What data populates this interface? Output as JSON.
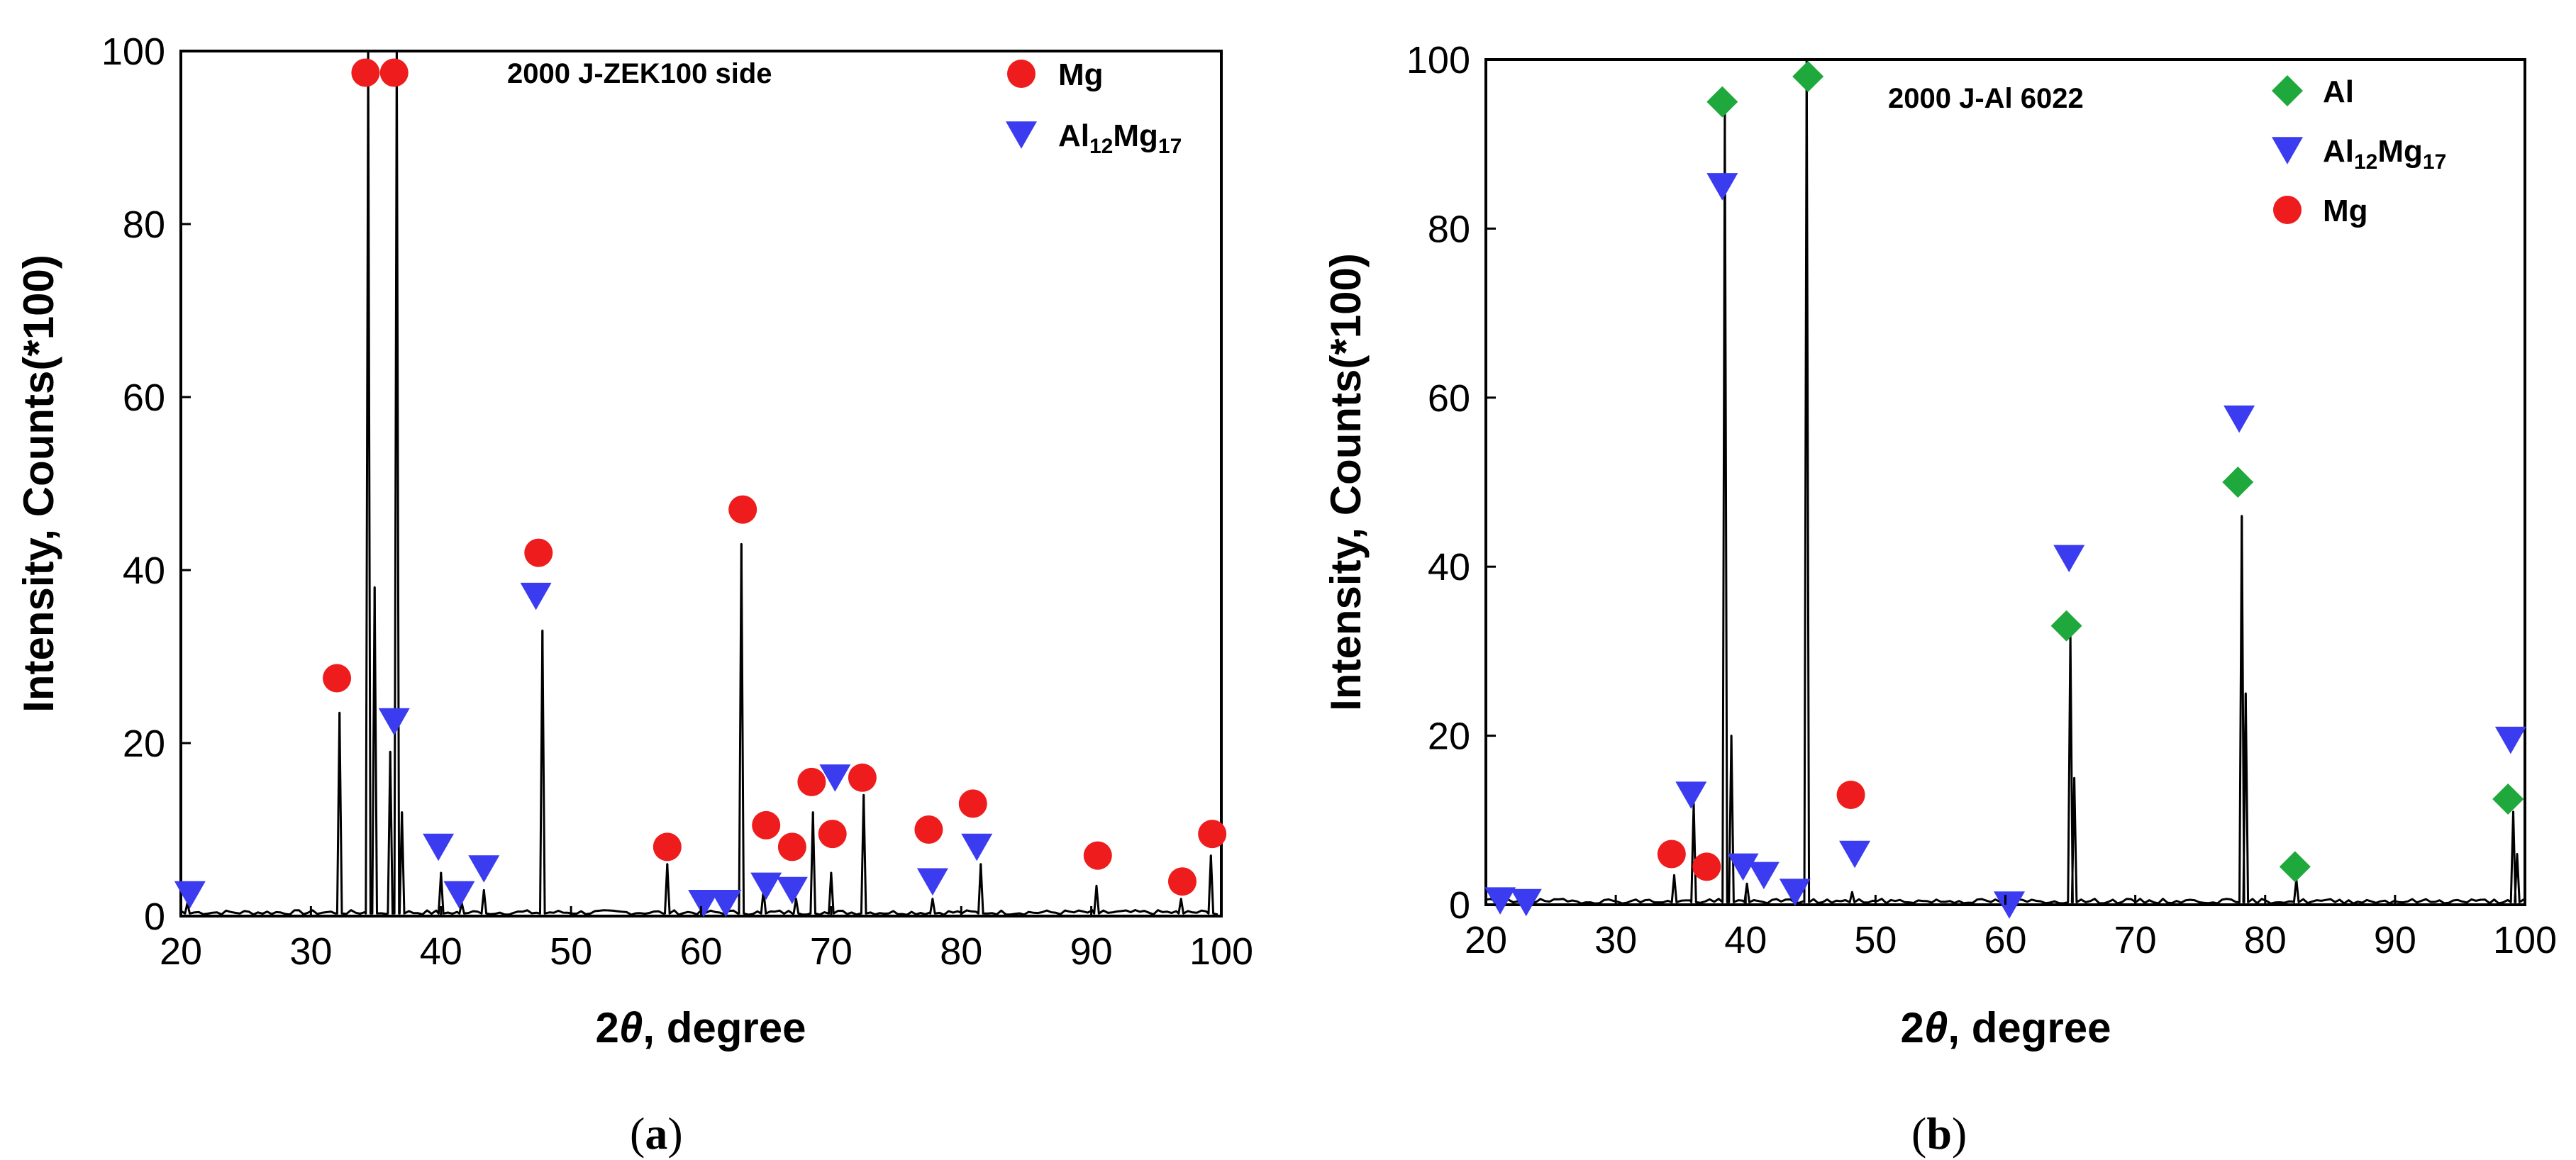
{
  "chart_data": [
    {
      "type": "line",
      "panel": "(a)",
      "title": "2000 J-ZEK100 side",
      "xlabel": "2θ, degree",
      "ylabel": "Intensity, Counts(*100)",
      "xlim": [
        20,
        100
      ],
      "ylim": [
        0,
        100
      ],
      "xticks": [
        20,
        30,
        40,
        50,
        60,
        70,
        80,
        90,
        100
      ],
      "yticks": [
        0,
        20,
        40,
        60,
        80,
        100
      ],
      "caption": {
        "pre": "(",
        "letter": "a",
        "post": ")"
      },
      "legend": [
        {
          "name": "Mg",
          "marker": "circle",
          "color": "#ee1c1c"
        },
        {
          "name": "Al12Mg17",
          "label_base": "Al",
          "sub1": "12",
          "mid": "Mg",
          "sub2": "17",
          "marker": "triangle-down",
          "color": "#3b3bf0"
        }
      ],
      "peaks": [
        {
          "x": 20.5,
          "y": 1.5
        },
        {
          "x": 32.2,
          "y": 23.5
        },
        {
          "x": 34.4,
          "y": 100
        },
        {
          "x": 34.9,
          "y": 38
        },
        {
          "x": 36.1,
          "y": 19
        },
        {
          "x": 36.6,
          "y": 100
        },
        {
          "x": 37.0,
          "y": 12
        },
        {
          "x": 40.0,
          "y": 5
        },
        {
          "x": 41.6,
          "y": 1.5
        },
        {
          "x": 43.3,
          "y": 3
        },
        {
          "x": 47.8,
          "y": 33
        },
        {
          "x": 57.4,
          "y": 6
        },
        {
          "x": 63.1,
          "y": 43
        },
        {
          "x": 64.8,
          "y": 3
        },
        {
          "x": 67.3,
          "y": 2
        },
        {
          "x": 68.6,
          "y": 12
        },
        {
          "x": 70.0,
          "y": 5
        },
        {
          "x": 72.5,
          "y": 14
        },
        {
          "x": 77.8,
          "y": 2
        },
        {
          "x": 81.5,
          "y": 6
        },
        {
          "x": 90.4,
          "y": 3.5
        },
        {
          "x": 96.9,
          "y": 2
        },
        {
          "x": 99.2,
          "y": 7
        }
      ],
      "markers": [
        {
          "phase": "Mg",
          "x": 32.0,
          "y": 27.5
        },
        {
          "phase": "Mg",
          "x": 34.2,
          "y": 97.5
        },
        {
          "phase": "Mg",
          "x": 36.4,
          "y": 97.5
        },
        {
          "phase": "Mg",
          "x": 47.5,
          "y": 42
        },
        {
          "phase": "Mg",
          "x": 57.4,
          "y": 8
        },
        {
          "phase": "Mg",
          "x": 63.2,
          "y": 47
        },
        {
          "phase": "Mg",
          "x": 65.0,
          "y": 10.5
        },
        {
          "phase": "Mg",
          "x": 67.0,
          "y": 8
        },
        {
          "phase": "Mg",
          "x": 68.5,
          "y": 15.5
        },
        {
          "phase": "Mg",
          "x": 70.1,
          "y": 9.5
        },
        {
          "phase": "Mg",
          "x": 72.4,
          "y": 16
        },
        {
          "phase": "Mg",
          "x": 77.5,
          "y": 10
        },
        {
          "phase": "Mg",
          "x": 80.9,
          "y": 13
        },
        {
          "phase": "Mg",
          "x": 90.5,
          "y": 7
        },
        {
          "phase": "Mg",
          "x": 97.0,
          "y": 4
        },
        {
          "phase": "Mg",
          "x": 99.3,
          "y": 9.5
        },
        {
          "phase": "Al12Mg17",
          "x": 20.7,
          "y": 2.5
        },
        {
          "phase": "Al12Mg17",
          "x": 36.4,
          "y": 22.5
        },
        {
          "phase": "Al12Mg17",
          "x": 39.8,
          "y": 8
        },
        {
          "phase": "Al12Mg17",
          "x": 41.4,
          "y": 2.5
        },
        {
          "phase": "Al12Mg17",
          "x": 43.3,
          "y": 5.5
        },
        {
          "phase": "Al12Mg17",
          "x": 47.3,
          "y": 37
        },
        {
          "phase": "Al12Mg17",
          "x": 60.2,
          "y": 1.5
        },
        {
          "phase": "Al12Mg17",
          "x": 61.9,
          "y": 1.5
        },
        {
          "phase": "Al12Mg17",
          "x": 65.0,
          "y": 3.5
        },
        {
          "phase": "Al12Mg17",
          "x": 67.0,
          "y": 3
        },
        {
          "phase": "Al12Mg17",
          "x": 70.3,
          "y": 16
        },
        {
          "phase": "Al12Mg17",
          "x": 77.8,
          "y": 4
        },
        {
          "phase": "Al12Mg17",
          "x": 81.2,
          "y": 8
        }
      ]
    },
    {
      "type": "line",
      "panel": "(b)",
      "title": "2000 J-Al 6022",
      "xlabel": "2θ, degree",
      "ylabel": "Intensity, Counts(*100)",
      "xlim": [
        20,
        100
      ],
      "ylim": [
        0,
        100
      ],
      "xticks": [
        20,
        30,
        40,
        50,
        60,
        70,
        80,
        90,
        100
      ],
      "yticks": [
        0,
        20,
        40,
        60,
        80,
        100
      ],
      "caption": {
        "pre": "(",
        "letter": "b",
        "post": ")"
      },
      "legend": [
        {
          "name": "Al",
          "marker": "diamond",
          "color": "#1fa83c"
        },
        {
          "name": "Al12Mg17",
          "label_base": "Al",
          "sub1": "12",
          "mid": "Mg",
          "sub2": "17",
          "marker": "triangle-down",
          "color": "#3b3bf0"
        },
        {
          "name": "Mg",
          "marker": "circle",
          "color": "#ee1c1c"
        }
      ],
      "peaks": [
        {
          "x": 34.5,
          "y": 3.5
        },
        {
          "x": 36.0,
          "y": 12
        },
        {
          "x": 38.4,
          "y": 94
        },
        {
          "x": 38.9,
          "y": 20
        },
        {
          "x": 40.1,
          "y": 2.5
        },
        {
          "x": 44.7,
          "y": 100
        },
        {
          "x": 48.2,
          "y": 1.5
        },
        {
          "x": 65.0,
          "y": 32
        },
        {
          "x": 65.3,
          "y": 15
        },
        {
          "x": 78.2,
          "y": 46
        },
        {
          "x": 78.5,
          "y": 25
        },
        {
          "x": 82.4,
          "y": 3
        },
        {
          "x": 99.1,
          "y": 11
        },
        {
          "x": 99.4,
          "y": 6
        }
      ],
      "markers": [
        {
          "phase": "Al",
          "x": 38.2,
          "y": 95
        },
        {
          "phase": "Al",
          "x": 44.8,
          "y": 98
        },
        {
          "phase": "Al",
          "x": 64.7,
          "y": 33
        },
        {
          "phase": "Al",
          "x": 77.9,
          "y": 50
        },
        {
          "phase": "Al",
          "x": 82.3,
          "y": 4.5
        },
        {
          "phase": "Al",
          "x": 98.7,
          "y": 12.5
        },
        {
          "phase": "Al12Mg17",
          "x": 21.1,
          "y": 0.5
        },
        {
          "phase": "Al12Mg17",
          "x": 23.1,
          "y": 0.3
        },
        {
          "phase": "Al12Mg17",
          "x": 35.8,
          "y": 13
        },
        {
          "phase": "Al12Mg17",
          "x": 38.2,
          "y": 85
        },
        {
          "phase": "Al12Mg17",
          "x": 39.8,
          "y": 4.5
        },
        {
          "phase": "Al12Mg17",
          "x": 41.4,
          "y": 3.5
        },
        {
          "phase": "Al12Mg17",
          "x": 43.8,
          "y": 1.5
        },
        {
          "phase": "Al12Mg17",
          "x": 48.4,
          "y": 6
        },
        {
          "phase": "Al12Mg17",
          "x": 60.3,
          "y": 0
        },
        {
          "phase": "Al12Mg17",
          "x": 64.9,
          "y": 41
        },
        {
          "phase": "Al12Mg17",
          "x": 78.0,
          "y": 57.5
        },
        {
          "phase": "Al12Mg17",
          "x": 98.9,
          "y": 19.5
        },
        {
          "phase": "Mg",
          "x": 34.3,
          "y": 6
        },
        {
          "phase": "Mg",
          "x": 37.0,
          "y": 4.5
        },
        {
          "phase": "Mg",
          "x": 48.1,
          "y": 13
        }
      ]
    }
  ]
}
